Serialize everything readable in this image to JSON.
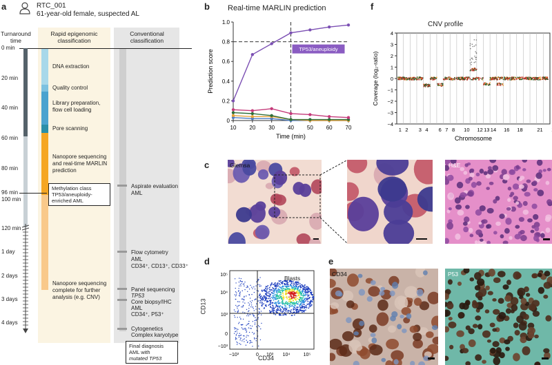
{
  "panel_a": {
    "letter": "a",
    "patient_id": "RTC_001",
    "patient_desc": "61-year-old female, suspected AL",
    "turnaround_header": "Turnaround time",
    "col_rapid_header": "Rapid epigenomic classification",
    "col_conv_header": "Conventional classification",
    "time_labels": [
      {
        "label": "0 min"
      },
      {
        "label": "20 min"
      },
      {
        "label": "40 min"
      },
      {
        "label": "60 min"
      },
      {
        "label": "80 min"
      },
      {
        "label": "96 min"
      },
      {
        "label": "100 min"
      },
      {
        "label": "120 min"
      },
      {
        "label": "1 day"
      },
      {
        "label": "2 days"
      },
      {
        "label": "3 days"
      },
      {
        "label": "4 days"
      }
    ],
    "rapid_steps": [
      {
        "label": "DNA extraction"
      },
      {
        "label": "Quality control"
      },
      {
        "label": "Library preparation, flow cell loading"
      },
      {
        "label": "Pore scanning"
      },
      {
        "label": "Nanopore sequencing and real-time MARLIN prediction"
      },
      {
        "label": "Methylation class TP53/aneuploidy-enriched AML"
      },
      {
        "label": "Nanopore sequencing complete for further analysis (e.g. CNV)"
      }
    ],
    "conv_steps": [
      {
        "label": "Aspirate evaluation",
        "detail": "AML"
      },
      {
        "label": "Flow cytometry",
        "detail": "AML",
        "detail2": "CD34⁺, CD13⁺, CD33⁺"
      },
      {
        "label": "Panel sequencing",
        "detail": "TP53"
      },
      {
        "label": "Core biopsy/IHC",
        "detail": "AML",
        "detail2": "CD34⁺, P53⁺"
      },
      {
        "label": "Cytogenetics",
        "detail": "Complex karyotype"
      }
    ],
    "final_box": {
      "line1": "Final diagnosis",
      "line2": "AML with",
      "line3": "mutated TP53"
    },
    "colors": {
      "dna": "#a8d8ea",
      "qc": "#7cc1e0",
      "lib": "#4aa3cf",
      "pore": "#2a8fa8",
      "seq": "#f5a623",
      "seq_light": "#f9c98a",
      "bg": "#fbf4e2",
      "gray_bg": "#e6e6e6",
      "timeline_dark": "#55626a"
    }
  },
  "panel_b": {
    "letter": "b",
    "chart_data": {
      "type": "line",
      "title": "Real-time MARLIN prediction",
      "xlabel": "Time (min)",
      "ylabel": "Prediction score",
      "xlim": [
        10,
        70
      ],
      "ylim": [
        0,
        1.0
      ],
      "x": [
        10,
        20,
        30,
        40,
        50,
        60,
        70
      ],
      "xticks": [
        "10",
        "20",
        "30",
        "40",
        "50",
        "60",
        "70"
      ],
      "yticks": [
        "0",
        "0.2",
        "0.4",
        "0.6",
        "0.8",
        "1.0"
      ],
      "threshold": 0.8,
      "vline_x": 40,
      "annotation": "TP53/aneuploidy",
      "series": [
        {
          "values": [
            0.2,
            0.67,
            0.78,
            0.89,
            0.92,
            0.95,
            0.97
          ],
          "color": "#7b4fb3"
        },
        {
          "values": [
            0.11,
            0.1,
            0.12,
            0.07,
            0.06,
            0.04,
            0.03
          ],
          "color": "#c43a7a"
        },
        {
          "values": [
            0.08,
            0.07,
            0.05,
            0.01,
            0.01,
            0.01,
            0.01
          ],
          "color": "#2e6e3a"
        },
        {
          "values": [
            0.05,
            0.04,
            0.04,
            0.01,
            0.0,
            0.0,
            0.0
          ],
          "color": "#e5a23a"
        },
        {
          "values": [
            0.03,
            0.02,
            0.02,
            0.0,
            0.0,
            0.0,
            0.0
          ],
          "color": "#4a7bc4"
        }
      ]
    }
  },
  "panel_c": {
    "letter": "c",
    "label_giemsa": "Giemsa",
    "label_he": "H&E"
  },
  "panel_d": {
    "letter": "d",
    "label_blasts": "Blasts",
    "xlabel": "CD34",
    "ylabel": "CD13",
    "xticks": [
      "−10³",
      "0",
      "10³",
      "10⁴",
      "10⁵"
    ],
    "yticks": [
      "10⁵",
      "10⁴",
      "10³",
      "0",
      "−10³"
    ]
  },
  "panel_e": {
    "letter": "e",
    "label_cd34": "CD34",
    "label_p53": "P53"
  },
  "panel_f": {
    "letter": "f",
    "chart_data": {
      "type": "scatter",
      "title": "CNV profile",
      "xlabel": "Chromosome",
      "ylabel": "Coverage (log₂-ratio)",
      "ylim": [
        -4,
        4
      ],
      "yticks": [
        "4",
        "3",
        "2",
        "1",
        "0",
        "−1",
        "−2",
        "−3",
        "−4"
      ],
      "xticks": [
        "1",
        "2",
        "3",
        "4",
        "6",
        "7",
        "8",
        "10",
        "12",
        "13",
        "14",
        "16",
        "18",
        "21",
        "X"
      ]
    }
  }
}
